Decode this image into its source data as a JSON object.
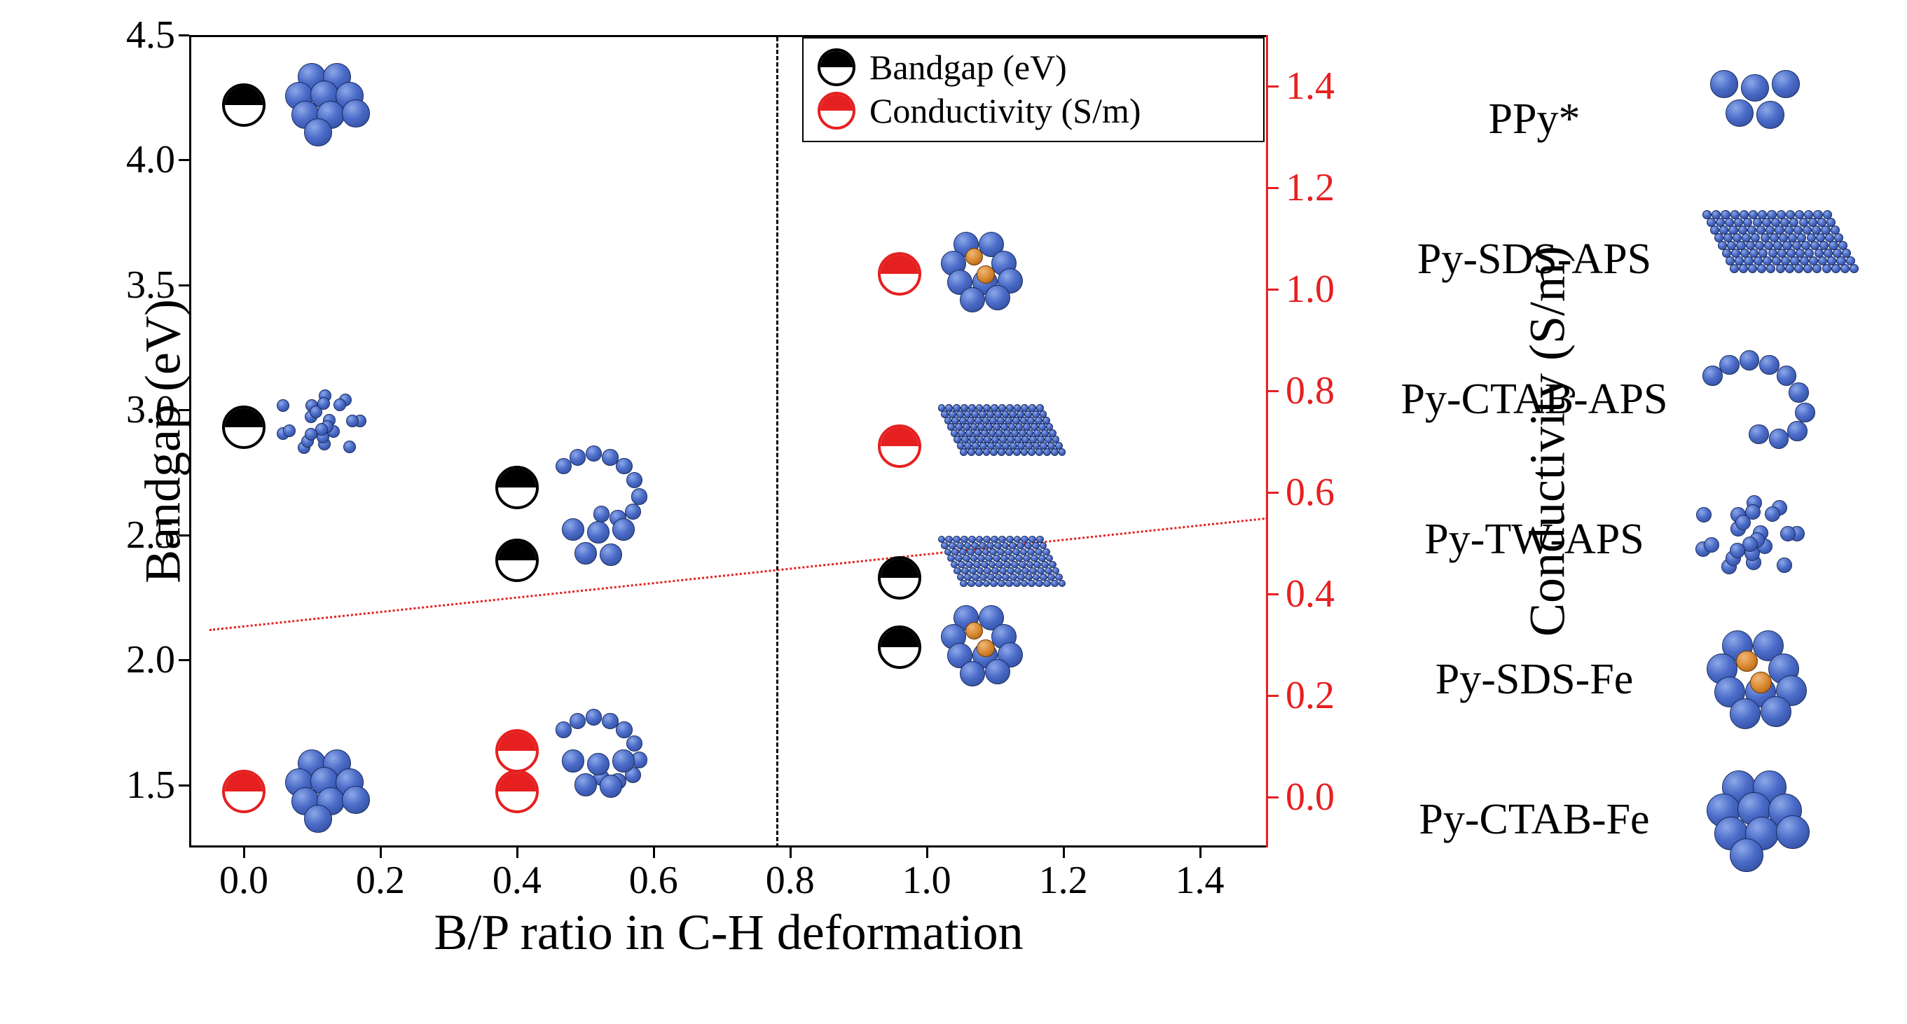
{
  "chart": {
    "type": "scatter-dual-axis",
    "xlabel": "B/P ratio in C-H deformation",
    "ylabel_left": "Bandgap (eV)",
    "ylabel_right": "Conductivity (S/m)",
    "xlim": [
      -0.08,
      1.5
    ],
    "ylim_left": [
      1.25,
      4.5
    ],
    "ylim_right": [
      -0.1,
      1.5
    ],
    "xticks": [
      0.0,
      0.2,
      0.4,
      0.6,
      0.8,
      1.0,
      1.2,
      1.4
    ],
    "yticks_left": [
      1.5,
      2.0,
      2.5,
      3.0,
      3.5,
      4.0,
      4.5
    ],
    "yticks_right": [
      0.0,
      0.2,
      0.4,
      0.6,
      0.8,
      1.0,
      1.2,
      1.4
    ],
    "vline_x": 0.78,
    "series_bandgap": {
      "label": "Bandgap (eV)",
      "marker_border": "#000000",
      "marker_fill_top": "#000000",
      "marker_fill_bottom": "#ffffff",
      "points": [
        {
          "x": 0.0,
          "y": 4.22,
          "icon": "py-ctab-fe"
        },
        {
          "x": 0.0,
          "y": 2.93,
          "icon": "py-tw-aps"
        },
        {
          "x": 0.4,
          "y": 2.69,
          "icon": "py-ctab-aps"
        },
        {
          "x": 0.4,
          "y": 2.4,
          "icon": "ppy"
        },
        {
          "x": 0.96,
          "y": 2.33,
          "icon": "py-sds-aps"
        },
        {
          "x": 0.96,
          "y": 2.05,
          "icon": "py-sds-fe"
        }
      ]
    },
    "series_conductivity": {
      "label": "Conductivity (S/m)",
      "marker_border": "#e62020",
      "marker_fill_top": "#e62020",
      "marker_fill_bottom": "#ffffff",
      "points": [
        {
          "x": 0.0,
          "y": 0.01,
          "icon": "py-ctab-fe"
        },
        {
          "x": 0.4,
          "y": 0.09,
          "icon": "py-ctab-aps"
        },
        {
          "x": 0.4,
          "y": 0.01,
          "icon": "ppy"
        },
        {
          "x": 0.96,
          "y": 1.03,
          "icon": "py-sds-fe"
        },
        {
          "x": 0.96,
          "y": 0.69,
          "icon": "py-sds-aps"
        }
      ]
    },
    "trend_line": {
      "x0": -0.05,
      "y0": 0.33,
      "x1": 1.5,
      "y1": 0.55,
      "color": "#e62020"
    },
    "background_color": "#ffffff",
    "axis_fontsize": 72,
    "tick_fontsize": 56
  },
  "legend": {
    "bandgap_label": "Bandgap (eV)",
    "conductivity_label": "Conductivity (S/m)"
  },
  "materials_legend": [
    {
      "label": "PPy*",
      "icon": "ppy"
    },
    {
      "label": "Py-SDS-APS",
      "icon": "py-sds-aps"
    },
    {
      "label": "Py-CTAB-APS",
      "icon": "py-ctab-aps"
    },
    {
      "label": "Py-TW-APS",
      "icon": "py-tw-aps"
    },
    {
      "label": "Py-SDS-Fe",
      "icon": "py-sds-fe"
    },
    {
      "label": "Py-CTAB-Fe",
      "icon": "py-ctab-fe"
    }
  ],
  "colors": {
    "black": "#000000",
    "red": "#e62020",
    "sphere_light": "#8da8e8",
    "sphere_mid": "#4a6bc8",
    "sphere_dark": "#2b4490",
    "sphere_orange": "#d88830"
  }
}
